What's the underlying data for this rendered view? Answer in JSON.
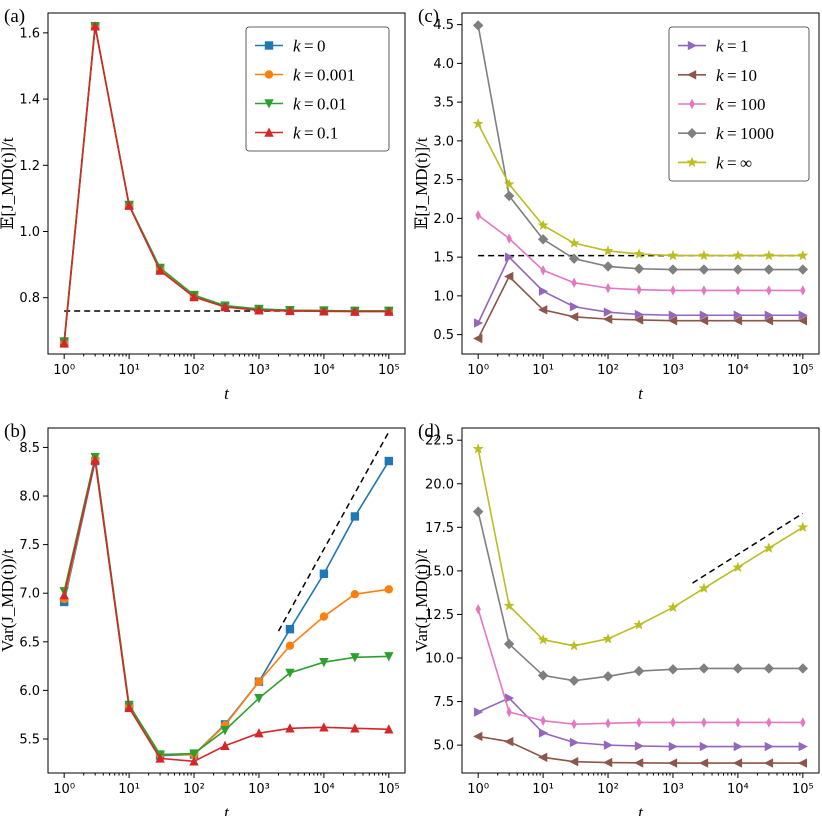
{
  "chart_data": [
    {
      "panel": "(a)",
      "type": "line",
      "xscale": "log",
      "xlim": [
        1,
        100000
      ],
      "ylim": [
        0.63,
        1.66
      ],
      "xlabel": "t",
      "ylabel": "𝔼[J_MD(t)]/t",
      "x": [
        1,
        3,
        10,
        30,
        100,
        300,
        1000,
        3000,
        10000,
        30000,
        100000
      ],
      "x_ticks": [
        1,
        10,
        100,
        1000,
        10000,
        100000
      ],
      "x_tick_labels": [
        "10⁰",
        "10¹",
        "10²",
        "10³",
        "10⁴",
        "10⁵"
      ],
      "y_ticks": [
        0.8,
        1.0,
        1.2,
        1.4,
        1.6
      ],
      "y_tick_labels": [
        "0.8",
        "1.0",
        "1.2",
        "1.4",
        "1.6"
      ],
      "legend_position": "upper-right",
      "series": [
        {
          "name": "k = 0",
          "label_k": "k",
          "label_val": "0",
          "color": "#1f77b4",
          "marker": "square",
          "values": [
            0.665,
            1.62,
            1.08,
            0.888,
            0.806,
            0.775,
            0.765,
            0.762,
            0.761,
            0.76,
            0.76
          ]
        },
        {
          "name": "k = 0.001",
          "label_k": "k",
          "label_val": "0.001",
          "color": "#ff7f0e",
          "marker": "circle",
          "values": [
            0.665,
            1.62,
            1.08,
            0.888,
            0.806,
            0.775,
            0.765,
            0.762,
            0.761,
            0.76,
            0.76
          ]
        },
        {
          "name": "k = 0.01",
          "label_k": "k",
          "label_val": "0.01",
          "color": "#2ca02c",
          "marker": "triangle-down",
          "values": [
            0.668,
            1.62,
            1.08,
            0.89,
            0.808,
            0.776,
            0.766,
            0.762,
            0.761,
            0.76,
            0.76
          ]
        },
        {
          "name": "k = 0.1",
          "label_k": "k",
          "label_val": "0.1",
          "color": "#d62728",
          "marker": "triangle-up",
          "values": [
            0.662,
            1.62,
            1.078,
            0.882,
            0.802,
            0.772,
            0.762,
            0.76,
            0.759,
            0.758,
            0.758
          ]
        }
      ],
      "reference_lines": [
        {
          "style": "dashed",
          "x": [
            1,
            100000
          ],
          "y": [
            0.76,
            0.76
          ]
        }
      ]
    },
    {
      "panel": "(c)",
      "type": "line",
      "xscale": "log",
      "xlim": [
        1,
        100000
      ],
      "ylim": [
        0.25,
        4.65
      ],
      "xlabel": "t",
      "ylabel": "𝔼[J_MD(t)]/t",
      "x": [
        1,
        3,
        10,
        30,
        100,
        300,
        1000,
        3000,
        10000,
        30000,
        100000
      ],
      "x_ticks": [
        1,
        10,
        100,
        1000,
        10000,
        100000
      ],
      "x_tick_labels": [
        "10⁰",
        "10¹",
        "10²",
        "10³",
        "10⁴",
        "10⁵"
      ],
      "y_ticks": [
        0.5,
        1.0,
        1.5,
        2.0,
        2.5,
        3.0,
        3.5,
        4.0,
        4.5
      ],
      "y_tick_labels": [
        "0.5",
        "1.0",
        "1.5",
        "2.0",
        "2.5",
        "3.0",
        "3.5",
        "4.0",
        "4.5"
      ],
      "legend_position": "upper-right",
      "series": [
        {
          "name": "k = 1",
          "label_k": "k",
          "label_val": "1",
          "color": "#9467bd",
          "marker": "triangle-right",
          "values": [
            0.65,
            1.5,
            1.06,
            0.86,
            0.79,
            0.76,
            0.75,
            0.75,
            0.75,
            0.75,
            0.75
          ]
        },
        {
          "name": "k = 10",
          "label_k": "k",
          "label_val": "10",
          "color": "#8c564b",
          "marker": "triangle-left",
          "values": [
            0.45,
            1.25,
            0.82,
            0.73,
            0.7,
            0.69,
            0.68,
            0.68,
            0.68,
            0.68,
            0.68
          ]
        },
        {
          "name": "k = 100",
          "label_k": "k",
          "label_val": "100",
          "color": "#e377c2",
          "marker": "thin-diamond",
          "values": [
            2.04,
            1.74,
            1.33,
            1.17,
            1.1,
            1.08,
            1.07,
            1.07,
            1.07,
            1.07,
            1.07
          ]
        },
        {
          "name": "k = 1000",
          "label_k": "k",
          "label_val": "1000",
          "color": "#7f7f7f",
          "marker": "diamond",
          "values": [
            4.49,
            2.29,
            1.73,
            1.48,
            1.38,
            1.35,
            1.34,
            1.34,
            1.34,
            1.34,
            1.34
          ]
        },
        {
          "name": "k = ∞",
          "label_k": "k",
          "label_val": "∞",
          "color": "#bcbd22",
          "marker": "star",
          "values": [
            3.22,
            2.44,
            1.91,
            1.68,
            1.58,
            1.54,
            1.52,
            1.52,
            1.52,
            1.52,
            1.52
          ]
        }
      ],
      "reference_lines": [
        {
          "style": "dashed",
          "x": [
            1,
            100000
          ],
          "y": [
            1.52,
            1.52
          ]
        }
      ]
    },
    {
      "panel": "(b)",
      "type": "line",
      "xscale": "log",
      "xlim": [
        1,
        100000
      ],
      "ylim": [
        5.15,
        8.7
      ],
      "xlabel": "t",
      "ylabel": "Var(J_MD(t))/t",
      "x": [
        1,
        3,
        10,
        30,
        100,
        300,
        1000,
        3000,
        10000,
        30000,
        100000
      ],
      "x_ticks": [
        1,
        10,
        100,
        1000,
        10000,
        100000
      ],
      "x_tick_labels": [
        "10⁰",
        "10¹",
        "10²",
        "10³",
        "10⁴",
        "10⁵"
      ],
      "y_ticks": [
        5.5,
        6.0,
        6.5,
        7.0,
        7.5,
        8.0,
        8.5
      ],
      "y_tick_labels": [
        "5.5",
        "6.0",
        "6.5",
        "7.0",
        "7.5",
        "8.0",
        "8.5"
      ],
      "series": [
        {
          "name": "k = 0",
          "color": "#1f77b4",
          "marker": "square",
          "values": [
            6.91,
            8.36,
            5.83,
            5.33,
            5.34,
            5.65,
            6.09,
            6.63,
            7.2,
            7.79,
            8.36
          ]
        },
        {
          "name": "k = 0.001",
          "color": "#ff7f0e",
          "marker": "circle",
          "values": [
            6.94,
            8.38,
            5.84,
            5.34,
            5.34,
            5.64,
            6.09,
            6.46,
            6.76,
            6.99,
            7.04
          ]
        },
        {
          "name": "k = 0.01",
          "color": "#2ca02c",
          "marker": "triangle-down",
          "values": [
            7.02,
            8.4,
            5.85,
            5.34,
            5.35,
            5.59,
            5.92,
            6.18,
            6.29,
            6.34,
            6.35
          ]
        },
        {
          "name": "k = 0.1",
          "color": "#d62728",
          "marker": "triangle-up",
          "values": [
            6.98,
            8.37,
            5.82,
            5.3,
            5.27,
            5.43,
            5.56,
            5.61,
            5.62,
            5.61,
            5.6
          ]
        }
      ],
      "reference_lines": [
        {
          "style": "dashed",
          "x": [
            2000,
            100000
          ],
          "y": [
            6.61,
            8.66
          ]
        }
      ]
    },
    {
      "panel": "(d)",
      "type": "line",
      "xscale": "log",
      "xlim": [
        1,
        100000
      ],
      "ylim": [
        3.4,
        23.2
      ],
      "xlabel": "t",
      "ylabel": "Var(J_MD(t))/t",
      "x": [
        1,
        3,
        10,
        30,
        100,
        300,
        1000,
        3000,
        10000,
        30000,
        100000
      ],
      "x_ticks": [
        1,
        10,
        100,
        1000,
        10000,
        100000
      ],
      "x_tick_labels": [
        "10⁰",
        "10¹",
        "10²",
        "10³",
        "10⁴",
        "10⁵"
      ],
      "y_ticks": [
        5.0,
        7.5,
        10.0,
        12.5,
        15.0,
        17.5,
        20.0,
        22.5
      ],
      "y_tick_labels": [
        "5.0",
        "7.5",
        "10.0",
        "12.5",
        "15.0",
        "17.5",
        "20.0",
        "22.5"
      ],
      "series": [
        {
          "name": "k = 1",
          "color": "#9467bd",
          "marker": "triangle-right",
          "values": [
            6.9,
            7.7,
            5.7,
            5.15,
            5.0,
            4.95,
            4.92,
            4.92,
            4.92,
            4.92,
            4.92
          ]
        },
        {
          "name": "k = 10",
          "color": "#8c564b",
          "marker": "triangle-left",
          "values": [
            5.5,
            5.2,
            4.3,
            4.05,
            4.0,
            3.98,
            3.97,
            3.97,
            3.97,
            3.97,
            3.97
          ]
        },
        {
          "name": "k = 100",
          "color": "#e377c2",
          "marker": "thin-diamond",
          "values": [
            12.8,
            6.9,
            6.4,
            6.2,
            6.25,
            6.3,
            6.3,
            6.3,
            6.3,
            6.3,
            6.3
          ]
        },
        {
          "name": "k = 1000",
          "color": "#7f7f7f",
          "marker": "diamond",
          "values": [
            18.4,
            10.8,
            9.0,
            8.7,
            8.95,
            9.25,
            9.35,
            9.4,
            9.4,
            9.4,
            9.4
          ]
        },
        {
          "name": "k = ∞",
          "color": "#bcbd22",
          "marker": "star",
          "values": [
            22.0,
            13.0,
            11.05,
            10.7,
            11.1,
            11.9,
            12.9,
            14.0,
            15.2,
            16.3,
            17.5
          ]
        }
      ],
      "reference_lines": [
        {
          "style": "dashed",
          "x": [
            2000,
            100000
          ],
          "y": [
            14.3,
            18.3
          ]
        }
      ]
    }
  ]
}
